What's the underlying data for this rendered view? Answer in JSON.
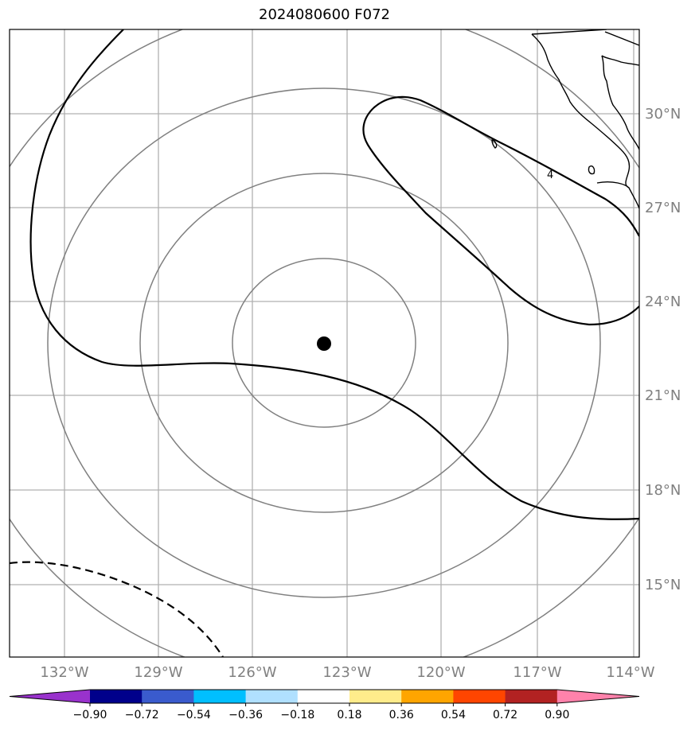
{
  "title": "2024080600 F072",
  "map": {
    "lat_labels": [
      "30°N",
      "27°N",
      "24°N",
      "21°N",
      "18°N",
      "15°N"
    ],
    "lon_labels": [
      "132°W",
      "129°W",
      "126°W",
      "123°W",
      "120°W",
      "117°W",
      "114°W"
    ],
    "center_marker": "storm-center",
    "contour_label": "4"
  },
  "colorbar": {
    "ticks": [
      "−0.90",
      "−0.72",
      "−0.54",
      "−0.36",
      "−0.18",
      "0.18",
      "0.36",
      "0.54",
      "0.72",
      "0.90"
    ],
    "colors": [
      "#9932cc",
      "#00008b",
      "#3a5bcd",
      "#00bfff",
      "#b0e0ff",
      "#ffffff",
      "#ffec8b",
      "#ffa500",
      "#ff4500",
      "#b22222",
      "#ff82ab"
    ]
  }
}
